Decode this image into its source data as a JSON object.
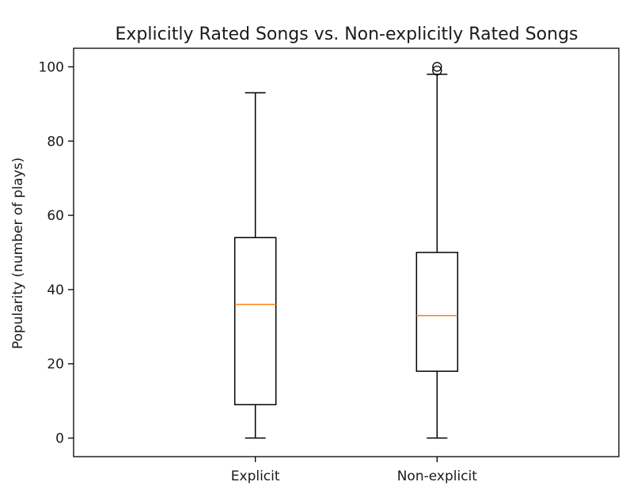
{
  "chart_data": {
    "type": "box",
    "title": "Explicitly Rated Songs vs. Non-explicitly Rated Songs",
    "xlabel": "",
    "ylabel": "Popularity (number of plays)",
    "ylim": [
      -5,
      105
    ],
    "yticks": [
      0,
      20,
      40,
      60,
      80,
      100
    ],
    "grid": false,
    "categories": [
      "Explicit",
      "Non-explicit"
    ],
    "boxes": [
      {
        "category": "Explicit",
        "whisker_low": 0,
        "q1": 9,
        "median": 36,
        "q3": 54,
        "whisker_high": 93,
        "outliers": []
      },
      {
        "category": "Non-explicit",
        "whisker_low": 0,
        "q1": 18,
        "median": 33,
        "q3": 50,
        "whisker_high": 98,
        "outliers": [
          99,
          100
        ]
      }
    ],
    "colors": {
      "box": "#000000",
      "median": "#ff7f0e",
      "axes": "#000000"
    }
  }
}
